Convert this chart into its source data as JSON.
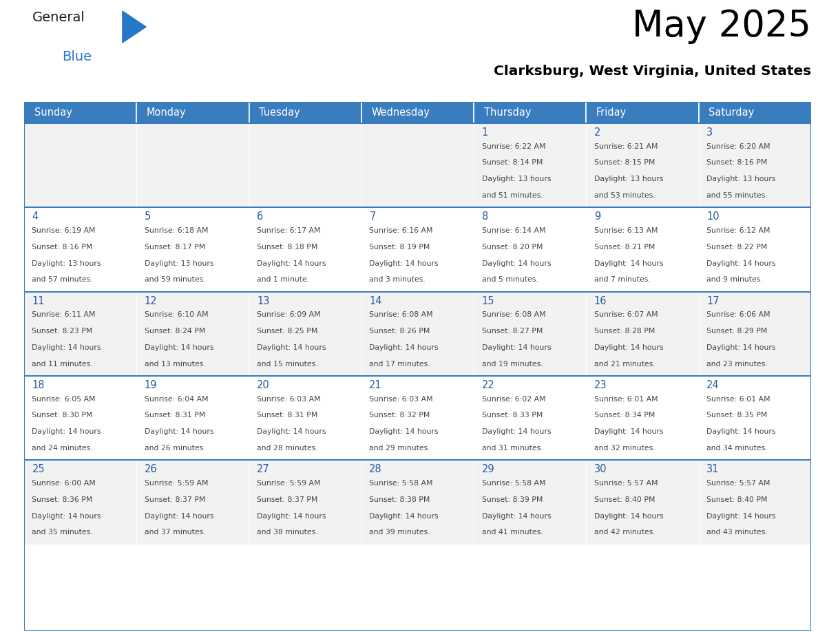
{
  "title": "May 2025",
  "subtitle": "Clarksburg, West Virginia, United States",
  "header_bg_color": "#3a7dbf",
  "header_text_color": "#ffffff",
  "cell_bg_even": "#f2f2f2",
  "cell_bg_odd": "#ffffff",
  "day_number_color": "#2a5aa0",
  "info_text_color": "#444444",
  "border_color": "#3a7dbf",
  "separator_color": "#3a7dbf",
  "days_of_week": [
    "Sunday",
    "Monday",
    "Tuesday",
    "Wednesday",
    "Thursday",
    "Friday",
    "Saturday"
  ],
  "weeks": [
    [
      {
        "day": null,
        "sunrise": null,
        "sunset": null,
        "daylight_hours": null,
        "daylight_minutes": null
      },
      {
        "day": null,
        "sunrise": null,
        "sunset": null,
        "daylight_hours": null,
        "daylight_minutes": null
      },
      {
        "day": null,
        "sunrise": null,
        "sunset": null,
        "daylight_hours": null,
        "daylight_minutes": null
      },
      {
        "day": null,
        "sunrise": null,
        "sunset": null,
        "daylight_hours": null,
        "daylight_minutes": null
      },
      {
        "day": 1,
        "sunrise": "6:22 AM",
        "sunset": "8:14 PM",
        "daylight_hours": 13,
        "daylight_minutes": 51
      },
      {
        "day": 2,
        "sunrise": "6:21 AM",
        "sunset": "8:15 PM",
        "daylight_hours": 13,
        "daylight_minutes": 53
      },
      {
        "day": 3,
        "sunrise": "6:20 AM",
        "sunset": "8:16 PM",
        "daylight_hours": 13,
        "daylight_minutes": 55
      }
    ],
    [
      {
        "day": 4,
        "sunrise": "6:19 AM",
        "sunset": "8:16 PM",
        "daylight_hours": 13,
        "daylight_minutes": 57
      },
      {
        "day": 5,
        "sunrise": "6:18 AM",
        "sunset": "8:17 PM",
        "daylight_hours": 13,
        "daylight_minutes": 59
      },
      {
        "day": 6,
        "sunrise": "6:17 AM",
        "sunset": "8:18 PM",
        "daylight_hours": 14,
        "daylight_minutes": 1
      },
      {
        "day": 7,
        "sunrise": "6:16 AM",
        "sunset": "8:19 PM",
        "daylight_hours": 14,
        "daylight_minutes": 3
      },
      {
        "day": 8,
        "sunrise": "6:14 AM",
        "sunset": "8:20 PM",
        "daylight_hours": 14,
        "daylight_minutes": 5
      },
      {
        "day": 9,
        "sunrise": "6:13 AM",
        "sunset": "8:21 PM",
        "daylight_hours": 14,
        "daylight_minutes": 7
      },
      {
        "day": 10,
        "sunrise": "6:12 AM",
        "sunset": "8:22 PM",
        "daylight_hours": 14,
        "daylight_minutes": 9
      }
    ],
    [
      {
        "day": 11,
        "sunrise": "6:11 AM",
        "sunset": "8:23 PM",
        "daylight_hours": 14,
        "daylight_minutes": 11
      },
      {
        "day": 12,
        "sunrise": "6:10 AM",
        "sunset": "8:24 PM",
        "daylight_hours": 14,
        "daylight_minutes": 13
      },
      {
        "day": 13,
        "sunrise": "6:09 AM",
        "sunset": "8:25 PM",
        "daylight_hours": 14,
        "daylight_minutes": 15
      },
      {
        "day": 14,
        "sunrise": "6:08 AM",
        "sunset": "8:26 PM",
        "daylight_hours": 14,
        "daylight_minutes": 17
      },
      {
        "day": 15,
        "sunrise": "6:08 AM",
        "sunset": "8:27 PM",
        "daylight_hours": 14,
        "daylight_minutes": 19
      },
      {
        "day": 16,
        "sunrise": "6:07 AM",
        "sunset": "8:28 PM",
        "daylight_hours": 14,
        "daylight_minutes": 21
      },
      {
        "day": 17,
        "sunrise": "6:06 AM",
        "sunset": "8:29 PM",
        "daylight_hours": 14,
        "daylight_minutes": 23
      }
    ],
    [
      {
        "day": 18,
        "sunrise": "6:05 AM",
        "sunset": "8:30 PM",
        "daylight_hours": 14,
        "daylight_minutes": 24
      },
      {
        "day": 19,
        "sunrise": "6:04 AM",
        "sunset": "8:31 PM",
        "daylight_hours": 14,
        "daylight_minutes": 26
      },
      {
        "day": 20,
        "sunrise": "6:03 AM",
        "sunset": "8:31 PM",
        "daylight_hours": 14,
        "daylight_minutes": 28
      },
      {
        "day": 21,
        "sunrise": "6:03 AM",
        "sunset": "8:32 PM",
        "daylight_hours": 14,
        "daylight_minutes": 29
      },
      {
        "day": 22,
        "sunrise": "6:02 AM",
        "sunset": "8:33 PM",
        "daylight_hours": 14,
        "daylight_minutes": 31
      },
      {
        "day": 23,
        "sunrise": "6:01 AM",
        "sunset": "8:34 PM",
        "daylight_hours": 14,
        "daylight_minutes": 32
      },
      {
        "day": 24,
        "sunrise": "6:01 AM",
        "sunset": "8:35 PM",
        "daylight_hours": 14,
        "daylight_minutes": 34
      }
    ],
    [
      {
        "day": 25,
        "sunrise": "6:00 AM",
        "sunset": "8:36 PM",
        "daylight_hours": 14,
        "daylight_minutes": 35
      },
      {
        "day": 26,
        "sunrise": "5:59 AM",
        "sunset": "8:37 PM",
        "daylight_hours": 14,
        "daylight_minutes": 37
      },
      {
        "day": 27,
        "sunrise": "5:59 AM",
        "sunset": "8:37 PM",
        "daylight_hours": 14,
        "daylight_minutes": 38
      },
      {
        "day": 28,
        "sunrise": "5:58 AM",
        "sunset": "8:38 PM",
        "daylight_hours": 14,
        "daylight_minutes": 39
      },
      {
        "day": 29,
        "sunrise": "5:58 AM",
        "sunset": "8:39 PM",
        "daylight_hours": 14,
        "daylight_minutes": 41
      },
      {
        "day": 30,
        "sunrise": "5:57 AM",
        "sunset": "8:40 PM",
        "daylight_hours": 14,
        "daylight_minutes": 42
      },
      {
        "day": 31,
        "sunrise": "5:57 AM",
        "sunset": "8:40 PM",
        "daylight_hours": 14,
        "daylight_minutes": 43
      }
    ]
  ],
  "logo_general_color": "#1a1a1a",
  "logo_blue_color": "#2577c8",
  "logo_triangle_color": "#2577c8"
}
